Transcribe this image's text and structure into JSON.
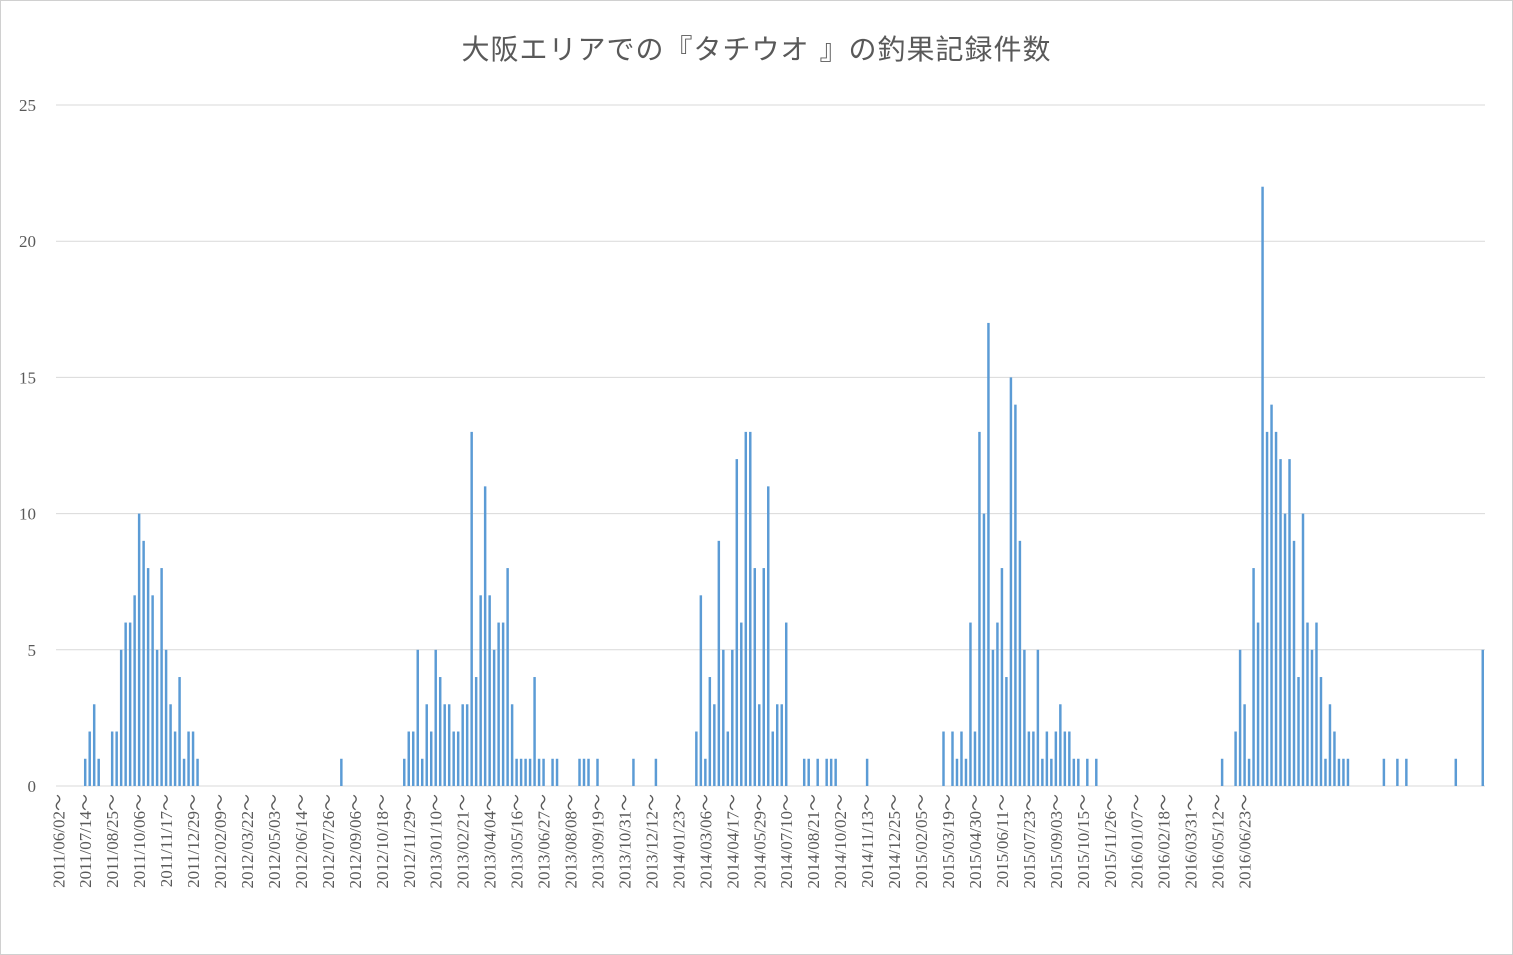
{
  "chart_data": {
    "type": "bar",
    "title": "大阪エリアでの『タチウオ 』の釣果記録件数",
    "xlabel": "",
    "ylabel": "",
    "ylim": [
      0,
      25
    ],
    "yticks": [
      0,
      5,
      10,
      15,
      20,
      25
    ],
    "grid": true,
    "legend": "none",
    "bar_color": "#5b9bd5",
    "grid_color": "#d9d9d9",
    "tick_label_suffix": "～",
    "tick_labels": [
      "2011/06/02～",
      "2011/07/14～",
      "2011/08/25～",
      "2011/10/06～",
      "2011/11/17～",
      "2011/12/29～",
      "2012/02/09～",
      "2012/03/22～",
      "2012/05/03～",
      "2012/06/14～",
      "2012/07/26～",
      "2012/09/06～",
      "2012/10/18～",
      "2012/11/29～",
      "2013/01/10～",
      "2013/02/21～",
      "2013/04/04～",
      "2013/05/16～",
      "2013/06/27～",
      "2013/08/08～",
      "2013/09/19～",
      "2013/10/31～",
      "2013/12/12～",
      "2014/01/23～",
      "2014/03/06～",
      "2014/04/17～",
      "2014/05/29～",
      "2014/07/10～",
      "2014/08/21～",
      "2014/10/02～",
      "2014/11/13～",
      "2014/12/25～",
      "2015/02/05～",
      "2015/03/19～",
      "2015/04/30～",
      "2015/06/11～",
      "2015/07/23～",
      "2015/09/03～",
      "2015/10/15～",
      "2015/11/26～",
      "2016/01/07～",
      "2016/02/18～",
      "2016/03/31～",
      "2016/05/12～",
      "2016/06/23～"
    ],
    "categories_per_tick": 6,
    "values": [
      0,
      0,
      0,
      0,
      0,
      0,
      1,
      2,
      3,
      1,
      0,
      0,
      2,
      2,
      5,
      6,
      6,
      7,
      10,
      9,
      8,
      7,
      5,
      8,
      5,
      3,
      2,
      4,
      1,
      2,
      2,
      1,
      0,
      0,
      0,
      0,
      0,
      0,
      0,
      0,
      0,
      0,
      0,
      0,
      0,
      0,
      0,
      0,
      0,
      0,
      0,
      0,
      0,
      0,
      0,
      0,
      0,
      0,
      0,
      0,
      0,
      0,
      0,
      1,
      0,
      0,
      0,
      0,
      0,
      0,
      0,
      0,
      0,
      0,
      0,
      0,
      0,
      1,
      2,
      2,
      5,
      1,
      3,
      2,
      5,
      4,
      3,
      3,
      2,
      2,
      3,
      3,
      13,
      4,
      7,
      11,
      7,
      5,
      6,
      6,
      8,
      3,
      1,
      1,
      1,
      1,
      4,
      1,
      1,
      0,
      1,
      1,
      0,
      0,
      0,
      0,
      1,
      1,
      1,
      0,
      1,
      0,
      0,
      0,
      0,
      0,
      0,
      0,
      1,
      0,
      0,
      0,
      0,
      1,
      0,
      0,
      0,
      0,
      0,
      0,
      0,
      0,
      2,
      7,
      1,
      4,
      3,
      9,
      5,
      2,
      5,
      12,
      6,
      13,
      13,
      8,
      3,
      8,
      11,
      2,
      3,
      3,
      6,
      0,
      0,
      0,
      1,
      1,
      0,
      1,
      0,
      1,
      1,
      1,
      0,
      0,
      0,
      0,
      0,
      0,
      1,
      0,
      0,
      0,
      0,
      0,
      0,
      0,
      0,
      0,
      0,
      0,
      0,
      0,
      0,
      0,
      0,
      2,
      0,
      2,
      1,
      2,
      1,
      6,
      2,
      13,
      10,
      17,
      5,
      6,
      8,
      4,
      15,
      14,
      9,
      5,
      2,
      2,
      5,
      1,
      2,
      1,
      2,
      3,
      2,
      2,
      1,
      1,
      0,
      1,
      0,
      1,
      0,
      0,
      0,
      0,
      0,
      0,
      0,
      0,
      0,
      0,
      0,
      0,
      0,
      0,
      0,
      0,
      0,
      0,
      0,
      0,
      0,
      0,
      0,
      0,
      0,
      0,
      0,
      1,
      0,
      0,
      2,
      5,
      3,
      1,
      8,
      6,
      22,
      13,
      14,
      13,
      12,
      10,
      12,
      9,
      4,
      10,
      6,
      5,
      6,
      4,
      1,
      3,
      2,
      1,
      1,
      1,
      0,
      0,
      0,
      0,
      0,
      0,
      0,
      1,
      0,
      0,
      1,
      0,
      1,
      0,
      0,
      0,
      0,
      0,
      0,
      0,
      0,
      0,
      0,
      1,
      0,
      0,
      0,
      0,
      0,
      5
    ]
  }
}
